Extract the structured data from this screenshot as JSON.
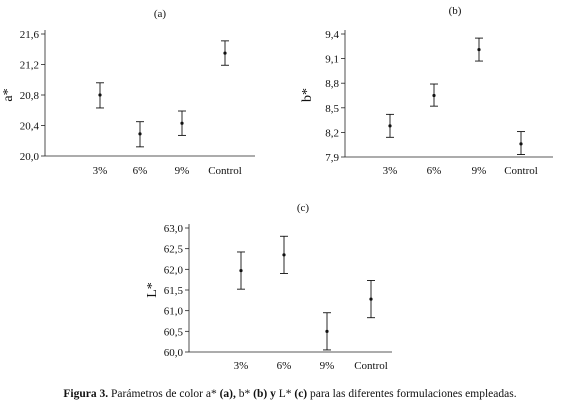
{
  "caption": {
    "figure_label": "Figura 3.",
    "text_1": " Parámetros de color a* ",
    "tag_a": "(a),",
    "text_2": " b* ",
    "tag_b": "(b)",
    "conj": " y ",
    "text_3": "L* ",
    "tag_c": "(c)",
    "text_4": " para las diferentes formulaciones empleadas."
  },
  "chart_data": [
    {
      "type": "scatter",
      "panel_label": "(a)",
      "ylabel": "a*",
      "xlabel": "",
      "categories": [
        "3%",
        "6%",
        "9%",
        "Control"
      ],
      "ylim": [
        20.0,
        21.6
      ],
      "yticks": [
        20.0,
        20.4,
        20.8,
        21.2,
        21.6
      ],
      "tick_labels": [
        "20,0",
        "20,4",
        "20,8",
        "21,2",
        "21,6"
      ],
      "series": [
        {
          "values": [
            20.8,
            20.29,
            20.43,
            21.35
          ],
          "lower": [
            20.63,
            20.12,
            20.27,
            21.19
          ],
          "upper": [
            20.96,
            20.45,
            20.59,
            21.51
          ]
        }
      ]
    },
    {
      "type": "scatter",
      "panel_label": "(b)",
      "ylabel": "b*",
      "xlabel": "",
      "categories": [
        "3%",
        "6%",
        "9%",
        "Control"
      ],
      "ylim": [
        7.9,
        9.4
      ],
      "yticks": [
        7.9,
        8.2,
        8.5,
        8.8,
        9.1,
        9.4
      ],
      "tick_labels": [
        "7,9",
        "8,2",
        "8,5",
        "8,8",
        "9,1",
        "9,4"
      ],
      "series": [
        {
          "values": [
            8.28,
            8.65,
            9.21,
            8.06
          ],
          "lower": [
            8.14,
            8.52,
            9.07,
            7.93
          ],
          "upper": [
            8.42,
            8.79,
            9.35,
            8.21
          ]
        }
      ]
    },
    {
      "type": "scatter",
      "panel_label": "(c)",
      "ylabel": "L*",
      "xlabel": "",
      "categories": [
        "3%",
        "6%",
        "9%",
        "Control"
      ],
      "ylim": [
        60.0,
        63.0
      ],
      "yticks": [
        60.0,
        60.5,
        61.0,
        61.5,
        62.0,
        62.5,
        63.0
      ],
      "tick_labels": [
        "60,0",
        "60,5",
        "61,0",
        "61,5",
        "62,0",
        "62,5",
        "63,0"
      ],
      "series": [
        {
          "values": [
            61.97,
            62.35,
            60.5,
            61.28
          ],
          "lower": [
            61.52,
            61.9,
            60.05,
            60.83
          ],
          "upper": [
            62.42,
            62.8,
            60.95,
            61.73
          ]
        }
      ]
    }
  ]
}
